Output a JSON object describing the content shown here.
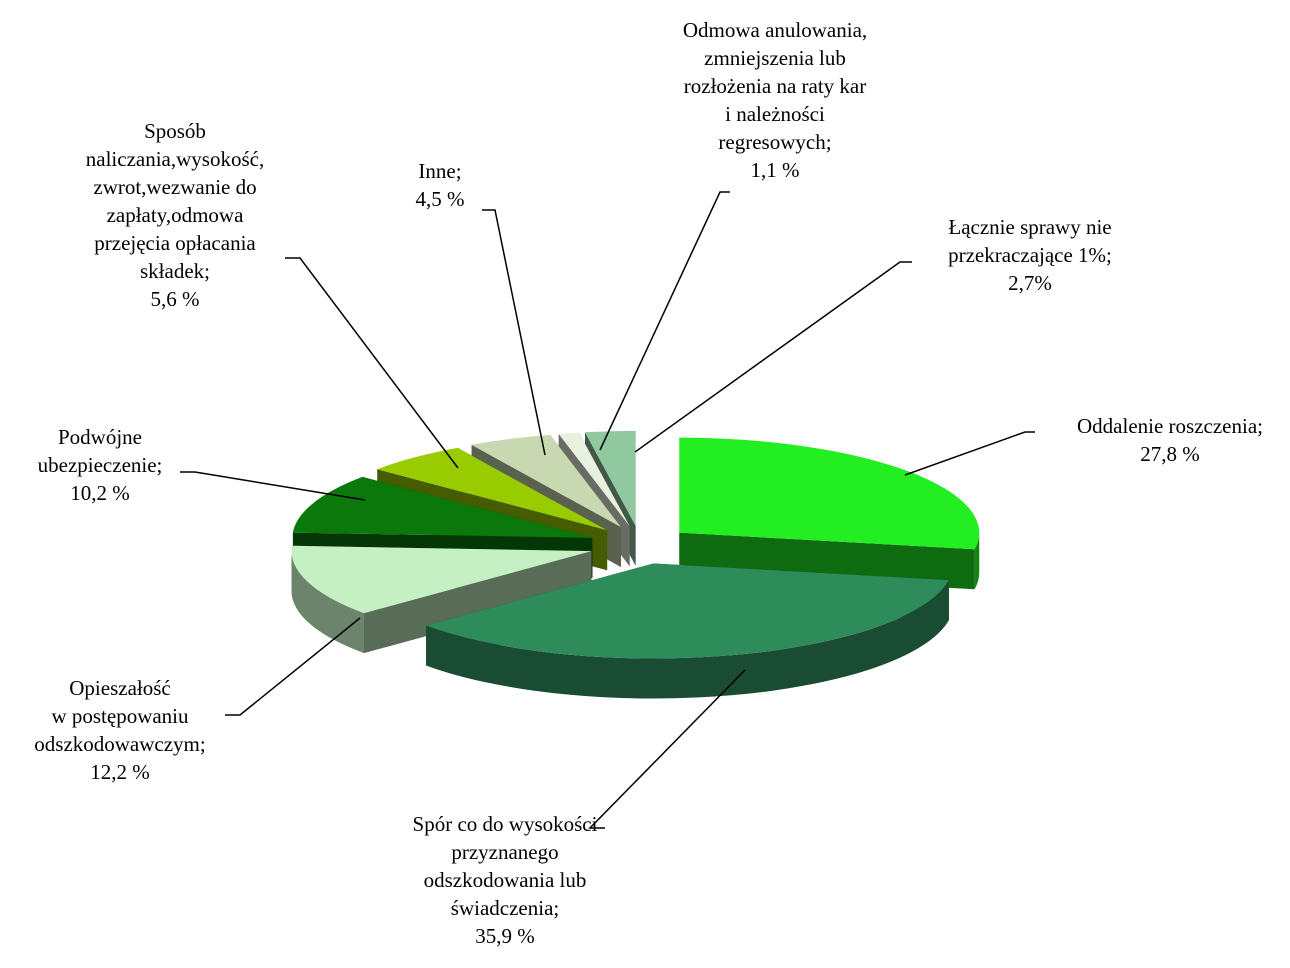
{
  "chart_data": {
    "type": "pie3d",
    "categories": [
      "Oddalenie roszczenia;",
      "Spór co do wysokości\nprzyznanego\nodszkodowania lub\nświadczenia;",
      "Opieszałość\nw postępowaniu\nodszkodowawczym;",
      "Podwójne\nubezpieczenie;",
      "Sposób\nnaliczania,wysokość,\nzwrot,wezwanie do\nzapłaty,odmowa\nprzejęcia opłacania\nskładek;",
      "Inne;",
      "Odmowa anulowania,\nzmniejszenia lub\nrozłożenia na raty kar\ni należności\nregresowych;",
      "Łącznie sprawy nie\nprzekraczające 1%;"
    ],
    "values": [
      27.8,
      35.9,
      12.2,
      10.2,
      5.6,
      4.5,
      1.1,
      2.7
    ],
    "value_labels": [
      "27,8 %",
      "35,9 %",
      "12,2 %",
      "10,2 %",
      "5,6 %",
      "4,5 %",
      "1,1 %",
      "2,7%"
    ],
    "colors": [
      "#22ee22",
      "#2e8b5a",
      "#c4f0c4",
      "#0a780a",
      "#99cc00",
      "#c8d8b0",
      "#e8f0e0",
      "#90c8a0"
    ]
  }
}
